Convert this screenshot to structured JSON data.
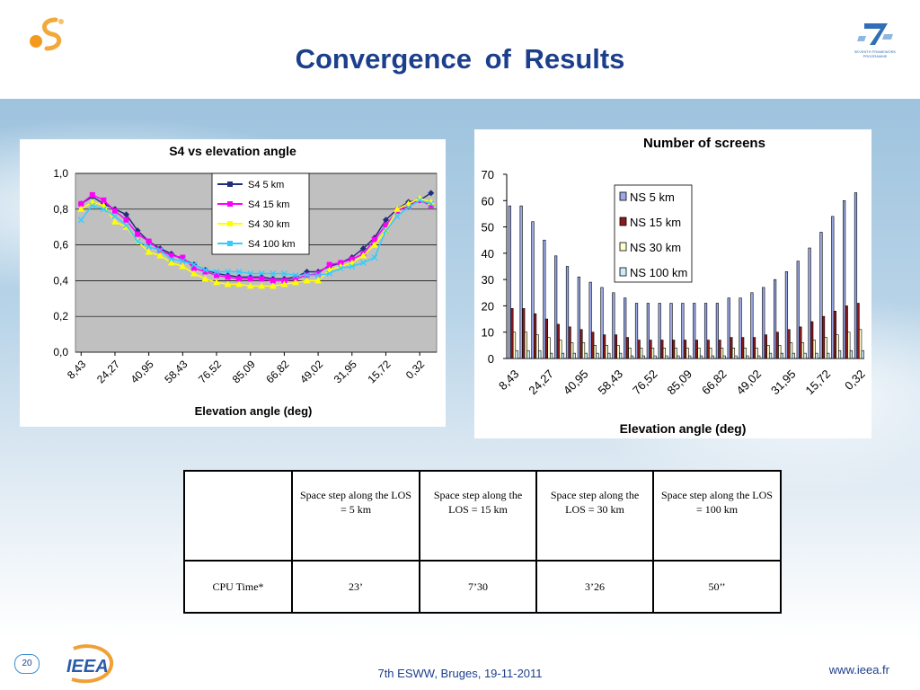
{
  "slide": {
    "title": "Convergence  of  Results",
    "page_number": "20",
    "footer": "7th ESWW, Bruges, 19-11-2011",
    "url": "www.ieea.fr",
    "logos": {
      "top_left": "sun-s-logo",
      "top_right": "seventh-framework-programme-logo",
      "bottom_left": "ieea-logo"
    },
    "logo_text": {
      "fp7": "SEVENTH FRAMEWORK PROGRAMME",
      "ieea": "IEEA"
    }
  },
  "chart_data": [
    {
      "type": "line",
      "title": "S4 vs elevation angle",
      "xlabel": "Elevation angle (deg)",
      "ylabel": "",
      "ylim": [
        0,
        1.0
      ],
      "yticks": [
        "1,0",
        "0,8",
        "0,6",
        "0,4",
        "0,2",
        "0,0"
      ],
      "xtick_labels": [
        "8,43",
        "24,27",
        "40,95",
        "58,43",
        "76,52",
        "85,09",
        "66,82",
        "49,02",
        "31,95",
        "15,72",
        "0,32"
      ],
      "grid": true,
      "legend_position": "top-center",
      "plot_background": "#c0c0c0",
      "series": [
        {
          "name": "S4   5 km",
          "color": "#1f2f7a",
          "marker": "diamond",
          "values": [
            0.83,
            0.87,
            0.83,
            0.8,
            0.77,
            0.68,
            0.62,
            0.58,
            0.55,
            0.52,
            0.49,
            0.46,
            0.44,
            0.43,
            0.42,
            0.42,
            0.42,
            0.41,
            0.41,
            0.42,
            0.45,
            0.45,
            0.48,
            0.5,
            0.53,
            0.58,
            0.64,
            0.74,
            0.8,
            0.84,
            0.85,
            0.89
          ]
        },
        {
          "name": "S4  15 km",
          "color": "#ff00ff",
          "marker": "square",
          "values": [
            0.83,
            0.88,
            0.85,
            0.79,
            0.74,
            0.66,
            0.62,
            0.57,
            0.54,
            0.53,
            0.47,
            0.45,
            0.43,
            0.42,
            0.41,
            0.41,
            0.41,
            0.4,
            0.4,
            0.41,
            0.43,
            0.44,
            0.49,
            0.5,
            0.52,
            0.55,
            0.63,
            0.71,
            0.79,
            0.82,
            0.85,
            0.82
          ]
        },
        {
          "name": "S4  30 km",
          "color": "#ffff00",
          "marker": "triangle",
          "values": [
            0.8,
            0.84,
            0.82,
            0.73,
            0.7,
            0.62,
            0.56,
            0.54,
            0.5,
            0.48,
            0.44,
            0.41,
            0.39,
            0.38,
            0.38,
            0.37,
            0.37,
            0.37,
            0.38,
            0.39,
            0.4,
            0.4,
            0.46,
            0.48,
            0.5,
            0.54,
            0.6,
            0.68,
            0.8,
            0.83,
            0.86,
            0.84
          ]
        },
        {
          "name": "S4 100 km",
          "color": "#33ccff",
          "marker": "x",
          "values": [
            0.74,
            0.82,
            0.8,
            0.76,
            0.71,
            0.62,
            0.59,
            0.57,
            0.52,
            0.51,
            0.49,
            0.46,
            0.45,
            0.45,
            0.45,
            0.44,
            0.44,
            0.44,
            0.44,
            0.43,
            0.43,
            0.43,
            0.44,
            0.47,
            0.48,
            0.5,
            0.53,
            0.68,
            0.76,
            0.81,
            0.85,
            0.83
          ]
        }
      ]
    },
    {
      "type": "bar",
      "title": "Number of screens",
      "xlabel": "Elevation angle (deg)",
      "ylabel": "",
      "ylim": [
        0,
        70
      ],
      "yticks": [
        "70",
        "60",
        "50",
        "40",
        "30",
        "20",
        "10",
        "0"
      ],
      "xtick_labels": [
        "8,43",
        "24,27",
        "40,95",
        "58,43",
        "76,52",
        "85,09",
        "66,82",
        "49,02",
        "31,95",
        "15,72",
        "0,32"
      ],
      "grid": false,
      "legend_position": "top-left",
      "plot_background": "#ffffff",
      "series": [
        {
          "name": "NS 5 km",
          "color": "#9aa8e8",
          "values": [
            58,
            58,
            52,
            45,
            39,
            35,
            31,
            29,
            27,
            25,
            23,
            21,
            21,
            21,
            21,
            21,
            21,
            21,
            21,
            23,
            23,
            25,
            27,
            30,
            33,
            37,
            42,
            48,
            54,
            60,
            63
          ]
        },
        {
          "name": "NS 15 km",
          "color": "#8b1a1a",
          "values": [
            19,
            19,
            17,
            15,
            13,
            12,
            11,
            10,
            9,
            9,
            8,
            7,
            7,
            7,
            7,
            7,
            7,
            7,
            7,
            8,
            8,
            8,
            9,
            10,
            11,
            12,
            14,
            16,
            18,
            20,
            21
          ]
        },
        {
          "name": "NS 30 km",
          "color": "#ffffcc",
          "values": [
            10,
            10,
            9,
            8,
            7,
            6,
            6,
            5,
            5,
            5,
            4,
            4,
            4,
            4,
            4,
            4,
            4,
            4,
            4,
            4,
            4,
            4,
            5,
            5,
            6,
            6,
            7,
            8,
            9,
            10,
            11
          ]
        },
        {
          "name": "NS 100 km",
          "color": "#ccecf8",
          "values": [
            3,
            3,
            3,
            2,
            2,
            2,
            2,
            2,
            2,
            2,
            1,
            1,
            1,
            1,
            1,
            1,
            1,
            1,
            1,
            1,
            1,
            1,
            2,
            2,
            2,
            2,
            2,
            2,
            3,
            3,
            3
          ]
        }
      ]
    }
  ],
  "cpu_table": {
    "headers": [
      "",
      "Space step along the LOS = 5 km",
      "Space step along the LOS = 15 km",
      "Space step along the LOS = 30 km",
      "Space step along the LOS =  100 km"
    ],
    "rows": [
      {
        "label": "CPU Time*",
        "values": [
          "23’",
          "7’30",
          "3’26",
          "50’’"
        ]
      }
    ]
  }
}
